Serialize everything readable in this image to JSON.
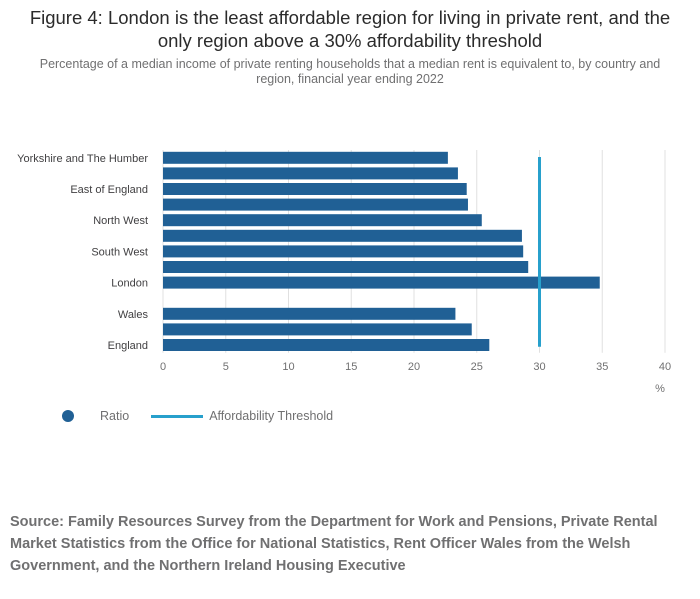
{
  "colors": {
    "bar": "#206095",
    "threshold": "#27a0cc",
    "grid": "#e0e0e0",
    "axis_text": "#707071",
    "label_text": "#414042"
  },
  "title": "Figure 4: London is the least affordable region for living in private rent, and the only region above a 30% affordability threshold",
  "subtitle": "Percentage of a median income of private renting households that a median rent is equivalent to, by country and region, financial year ending 2022",
  "legend": {
    "ratio_label": "Ratio",
    "threshold_label": "Affordability Threshold"
  },
  "source": "Source: Family Resources Survey from the Department for Work and Pensions, Private Rental Market Statistics from the Office for National Statistics, Rent Officer Wales from the Welsh Government, and the Northern Ireland Housing Executive",
  "chart_data": {
    "type": "bar",
    "orientation": "horizontal",
    "categories": [
      "Yorkshire and The Humber",
      "",
      "East of England",
      "",
      "North West",
      "",
      "South West",
      "",
      "London",
      "",
      "Wales",
      "",
      "England"
    ],
    "values": [
      22.7,
      23.5,
      24.2,
      24.3,
      25.4,
      28.6,
      28.7,
      29.1,
      34.8,
      null,
      23.3,
      24.6,
      26.0
    ],
    "threshold": 30,
    "xlim": [
      0,
      40
    ],
    "xticks": [
      "0",
      "5",
      "10",
      "15",
      "20",
      "25",
      "30",
      "35",
      "40"
    ],
    "xlabel": "%",
    "grid": true
  }
}
